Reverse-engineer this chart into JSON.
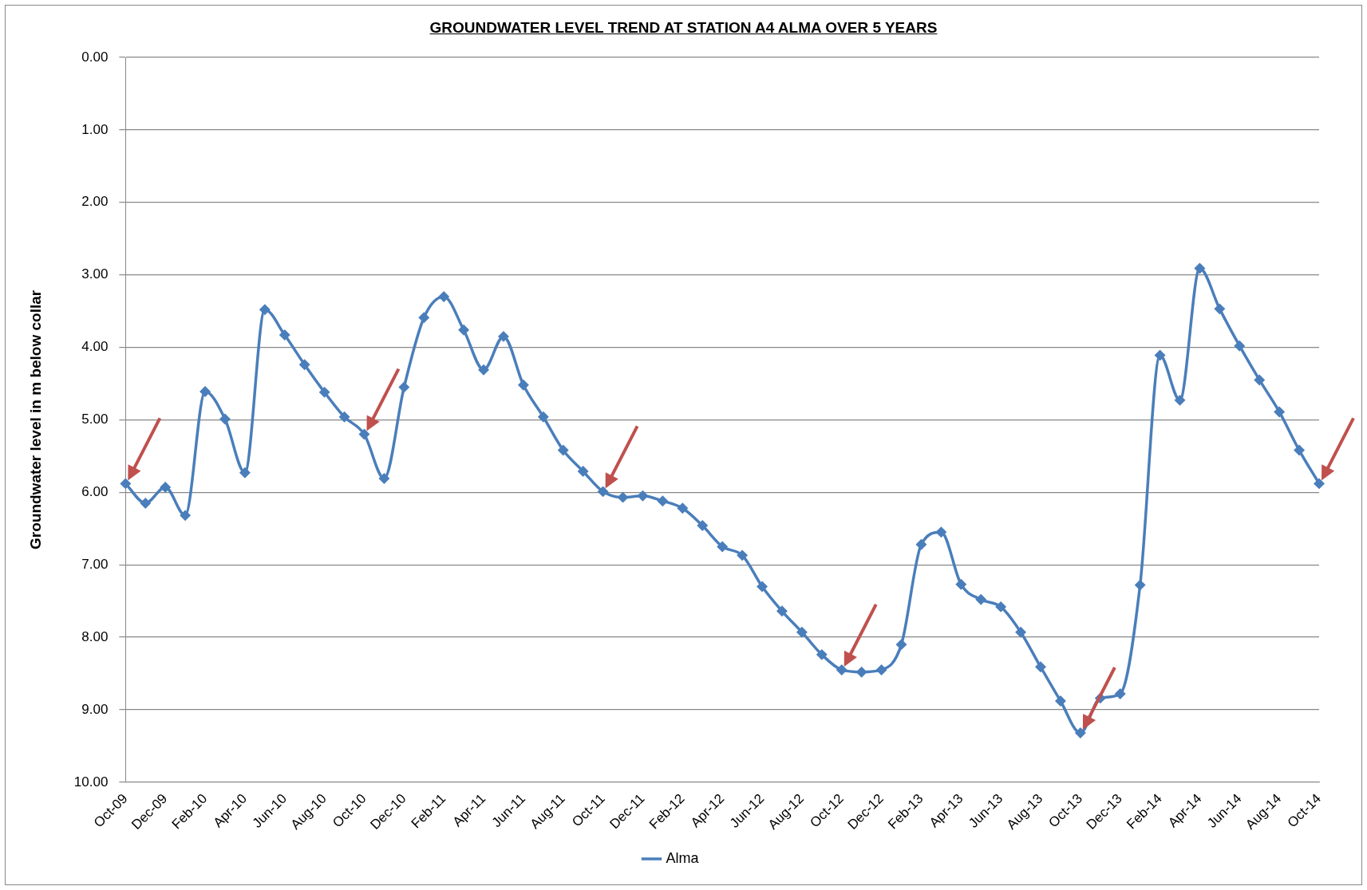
{
  "chart_data": {
    "type": "line",
    "title": "GROUNDWATER LEVEL TREND AT STATION A4 ALMA OVER 5 YEARS",
    "ylabel": "Groundwater level in m below collar",
    "categories": [
      "Oct-09",
      null,
      "Dec-09",
      null,
      "Feb-10",
      null,
      "Apr-10",
      null,
      "Jun-10",
      null,
      "Aug-10",
      null,
      "Oct-10",
      null,
      "Dec-10",
      null,
      "Feb-11",
      null,
      "Apr-11",
      null,
      "Jun-11",
      null,
      "Aug-11",
      null,
      "Oct-11",
      null,
      "Dec-11",
      null,
      "Feb-12",
      null,
      "Apr-12",
      null,
      "Jun-12",
      null,
      "Aug-12",
      null,
      "Oct-12",
      null,
      "Dec-12",
      null,
      "Feb-13",
      null,
      "Apr-13",
      null,
      "Jun-13",
      null,
      "Aug-13",
      null,
      "Oct-13",
      null,
      "Dec-13",
      null,
      "Feb-14",
      null,
      "Apr-14",
      null,
      "Jun-14",
      null,
      "Aug-14",
      null,
      "Oct-14"
    ],
    "series": [
      {
        "name": "Alma",
        "color": "#4a7ebb",
        "values": [
          5.88,
          6.15,
          5.93,
          6.32,
          4.61,
          4.99,
          5.73,
          3.48,
          3.83,
          4.24,
          4.62,
          4.96,
          5.2,
          5.81,
          4.55,
          3.59,
          3.3,
          3.76,
          4.31,
          3.85,
          4.52,
          4.96,
          5.42,
          5.71,
          5.99,
          6.07,
          6.05,
          6.12,
          6.22,
          6.46,
          6.75,
          6.87,
          7.3,
          7.64,
          7.93,
          8.24,
          8.45,
          8.48,
          8.45,
          8.1,
          6.72,
          6.55,
          7.27,
          7.48,
          7.58,
          7.93,
          8.41,
          8.88,
          9.32,
          8.84,
          8.78,
          7.28,
          4.11,
          4.73,
          2.91,
          3.47,
          3.98,
          4.45,
          4.89,
          5.42,
          5.88
        ]
      }
    ],
    "ylim": [
      10,
      0
    ],
    "yticks": [
      {
        "value": 0,
        "label": "0.00"
      },
      {
        "value": 1,
        "label": "1.00"
      },
      {
        "value": 2,
        "label": "2.00"
      },
      {
        "value": 3,
        "label": "3.00"
      },
      {
        "value": 4,
        "label": "4.00"
      },
      {
        "value": 5,
        "label": "5.00"
      },
      {
        "value": 6,
        "label": "6.00"
      },
      {
        "value": 7,
        "label": "7.00"
      },
      {
        "value": 8,
        "label": "8.00"
      },
      {
        "value": 9,
        "label": "9.00"
      },
      {
        "value": 10,
        "label": "10.00"
      }
    ],
    "grid": "y",
    "legend": "bottom",
    "marker": "diamond",
    "line_style": "solid"
  }
}
